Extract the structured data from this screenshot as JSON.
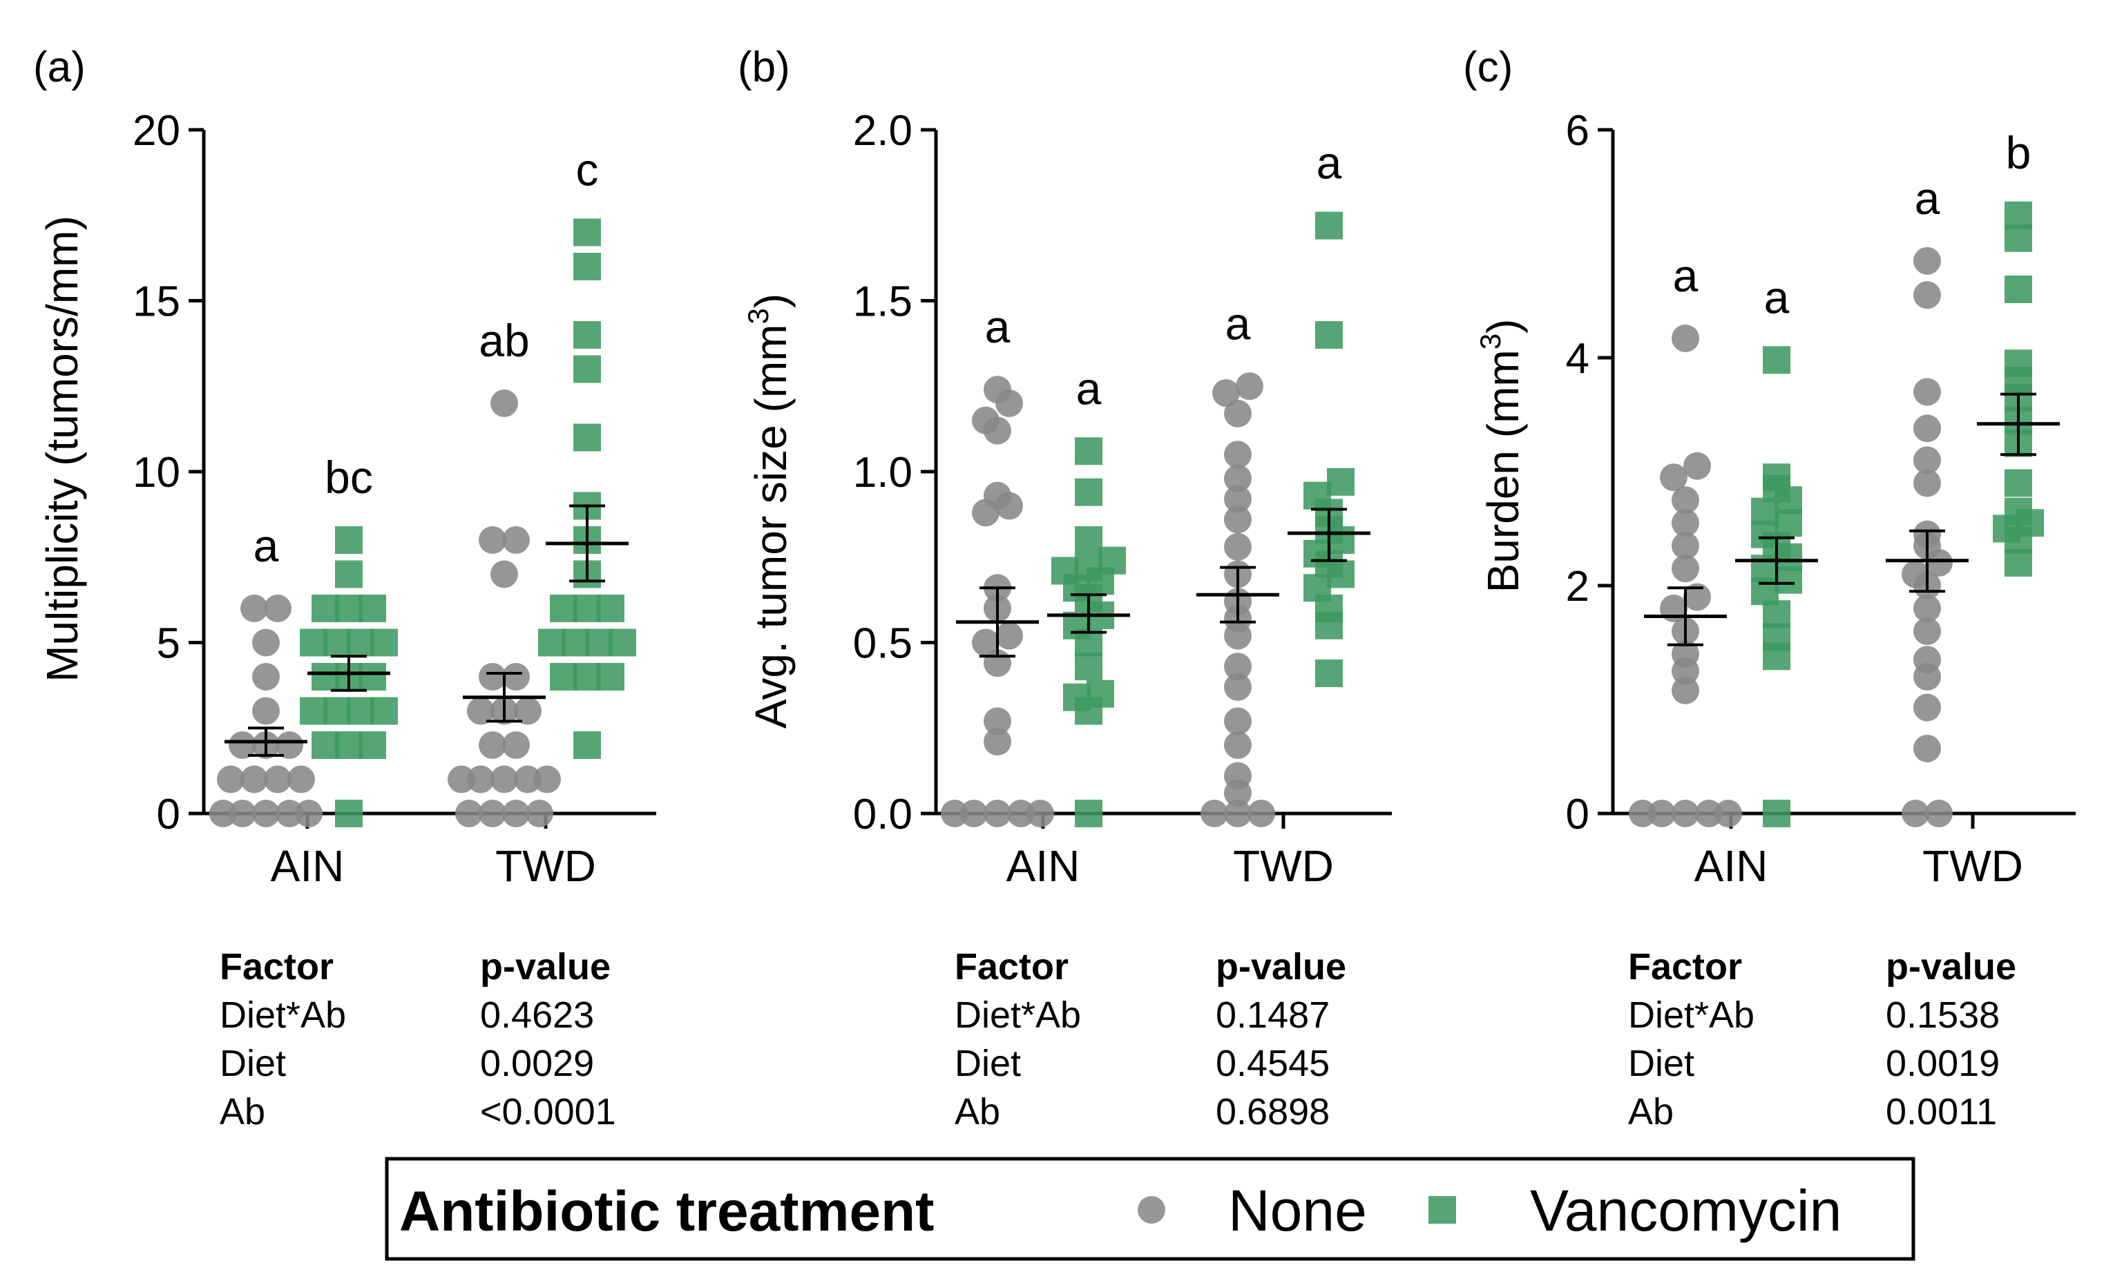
{
  "colors": {
    "none": "#888888",
    "vancomycin": "#3e9a61",
    "axis": "#000000"
  },
  "legend": {
    "title": "Antibiotic treatment",
    "none_label": "None",
    "vancomycin_label": "Vancomycin"
  },
  "chart_data": [
    {
      "type": "scatter",
      "panel": "(a)",
      "ylabel": "Multiplicity (tumors/mm)",
      "ylim": [
        0,
        20
      ],
      "yticks": [
        0,
        5,
        10,
        15,
        20
      ],
      "ytick_labels": [
        "0",
        "5",
        "10",
        "15",
        "20"
      ],
      "categories": [
        "AIN",
        "TWD"
      ],
      "series": [
        {
          "name": "None",
          "marker": "circle",
          "groups": [
            {
              "points": [
                0,
                0,
                0,
                0,
                0,
                1,
                1,
                1,
                1,
                2,
                2,
                2,
                3,
                4,
                5,
                6,
                6
              ],
              "mean": 2.1,
              "sem_low": 1.7,
              "sem_high": 2.5,
              "letter": "a"
            },
            {
              "points": [
                0,
                0,
                0,
                0,
                1,
                1,
                1,
                1,
                1,
                2,
                2,
                3,
                3,
                3,
                4,
                4,
                7,
                8,
                8,
                12
              ],
              "mean": 3.4,
              "sem_low": 2.7,
              "sem_high": 4.1,
              "letter": "ab"
            }
          ]
        },
        {
          "name": "Vancomycin",
          "marker": "square",
          "groups": [
            {
              "points": [
                0,
                2,
                2,
                2,
                3,
                3,
                3,
                3,
                4,
                4,
                4,
                5,
                5,
                5,
                5,
                6,
                6,
                6,
                7,
                8
              ],
              "mean": 4.1,
              "sem_low": 3.6,
              "sem_high": 4.6,
              "letter": "bc"
            },
            {
              "points": [
                2,
                4,
                4,
                4,
                5,
                5,
                5,
                5,
                6,
                6,
                6,
                7,
                8,
                9,
                11,
                13,
                14,
                16,
                17
              ],
              "mean": 7.9,
              "sem_low": 6.8,
              "sem_high": 9.0,
              "letter": "c"
            }
          ]
        }
      ],
      "stats": {
        "header": [
          "Factor",
          "p-value"
        ],
        "rows": [
          [
            "Diet*Ab",
            "0.4623"
          ],
          [
            "Diet",
            "0.0029"
          ],
          [
            "Ab",
            "<0.0001"
          ]
        ]
      }
    },
    {
      "type": "scatter",
      "panel": "(b)",
      "ylabel": "Avg. tumor size (mm",
      "ylabel_sup": "3",
      "ylabel_end": ")",
      "ylim": [
        0,
        2
      ],
      "yticks": [
        0,
        0.5,
        1.0,
        1.5,
        2.0
      ],
      "ytick_labels": [
        "0.0",
        "0.5",
        "1.0",
        "1.5",
        "2.0"
      ],
      "categories": [
        "AIN",
        "TWD"
      ],
      "series": [
        {
          "name": "None",
          "marker": "circle",
          "groups": [
            {
              "points": [
                0,
                0,
                0,
                0,
                0,
                0.21,
                0.27,
                0.44,
                0.5,
                0.52,
                0.6,
                0.66,
                0.88,
                0.9,
                0.93,
                1.12,
                1.15,
                1.2,
                1.24
              ],
              "mean": 0.56,
              "sem_low": 0.46,
              "sem_high": 0.66,
              "letter": "a"
            },
            {
              "points": [
                0,
                0,
                0,
                0.06,
                0.11,
                0.2,
                0.27,
                0.37,
                0.43,
                0.52,
                0.57,
                0.62,
                0.7,
                0.78,
                0.86,
                0.92,
                0.98,
                1.05,
                1.17,
                1.23,
                1.25
              ],
              "mean": 0.64,
              "sem_low": 0.56,
              "sem_high": 0.72,
              "letter": "a"
            }
          ]
        },
        {
          "name": "Vancomycin",
          "marker": "square",
          "groups": [
            {
              "points": [
                0,
                0.3,
                0.34,
                0.35,
                0.43,
                0.5,
                0.55,
                0.58,
                0.63,
                0.66,
                0.68,
                0.71,
                0.72,
                0.74,
                0.8,
                0.94,
                1.06
              ],
              "mean": 0.58,
              "sem_low": 0.53,
              "sem_high": 0.64,
              "letter": "a"
            },
            {
              "points": [
                0.41,
                0.55,
                0.6,
                0.66,
                0.7,
                0.73,
                0.76,
                0.8,
                0.83,
                0.88,
                0.93,
                0.97,
                1.4,
                1.72
              ],
              "mean": 0.82,
              "sem_low": 0.74,
              "sem_high": 0.89,
              "letter": "a"
            }
          ]
        }
      ],
      "stats": {
        "header": [
          "Factor",
          "p-value"
        ],
        "rows": [
          [
            "Diet*Ab",
            "0.1487"
          ],
          [
            "Diet",
            "0.4545"
          ],
          [
            "Ab",
            "0.6898"
          ]
        ]
      }
    },
    {
      "type": "scatter",
      "panel": "(c)",
      "ylabel": "Burden (mm",
      "ylabel_sup": "3",
      "ylabel_end": ")",
      "ylim": [
        0,
        6
      ],
      "yticks": [
        0,
        2,
        4,
        6
      ],
      "ytick_labels": [
        "0",
        "2",
        "4",
        "6"
      ],
      "categories": [
        "AIN",
        "TWD"
      ],
      "series": [
        {
          "name": "None",
          "marker": "circle",
          "groups": [
            {
              "points": [
                0,
                0,
                0,
                0,
                0,
                1.08,
                1.25,
                1.4,
                1.6,
                1.8,
                1.9,
                2.15,
                2.35,
                2.55,
                2.75,
                2.95,
                3.05,
                4.17
              ],
              "mean": 1.73,
              "sem_low": 1.48,
              "sem_high": 1.98,
              "letter": "a"
            },
            {
              "points": [
                0,
                0,
                0.57,
                0.93,
                1.2,
                1.35,
                1.6,
                1.8,
                2.0,
                2.1,
                2.2,
                2.35,
                2.45,
                2.9,
                3.1,
                3.38,
                3.7,
                4.55,
                4.85
              ],
              "mean": 2.22,
              "sem_low": 1.95,
              "sem_high": 2.48,
              "letter": "a"
            }
          ]
        },
        {
          "name": "Vancomycin",
          "marker": "square",
          "groups": [
            {
              "points": [
                0,
                1.38,
                1.55,
                1.75,
                1.95,
                2.05,
                2.15,
                2.25,
                2.35,
                2.45,
                2.55,
                2.65,
                2.75,
                2.85,
                2.95,
                3.98
              ],
              "mean": 2.22,
              "sem_low": 2.02,
              "sem_high": 2.42,
              "letter": "a"
            },
            {
              "points": [
                2.2,
                2.4,
                2.5,
                2.55,
                2.65,
                2.9,
                3.25,
                3.45,
                3.65,
                3.8,
                3.95,
                4.6,
                5.05,
                5.25
              ],
              "mean": 3.42,
              "sem_low": 3.15,
              "sem_high": 3.68,
              "letter": "b"
            }
          ]
        }
      ],
      "stats": {
        "header": [
          "Factor",
          "p-value"
        ],
        "rows": [
          [
            "Diet*Ab",
            "0.1538"
          ],
          [
            "Diet",
            "0.0019"
          ],
          [
            "Ab",
            "0.0011"
          ]
        ]
      }
    }
  ]
}
